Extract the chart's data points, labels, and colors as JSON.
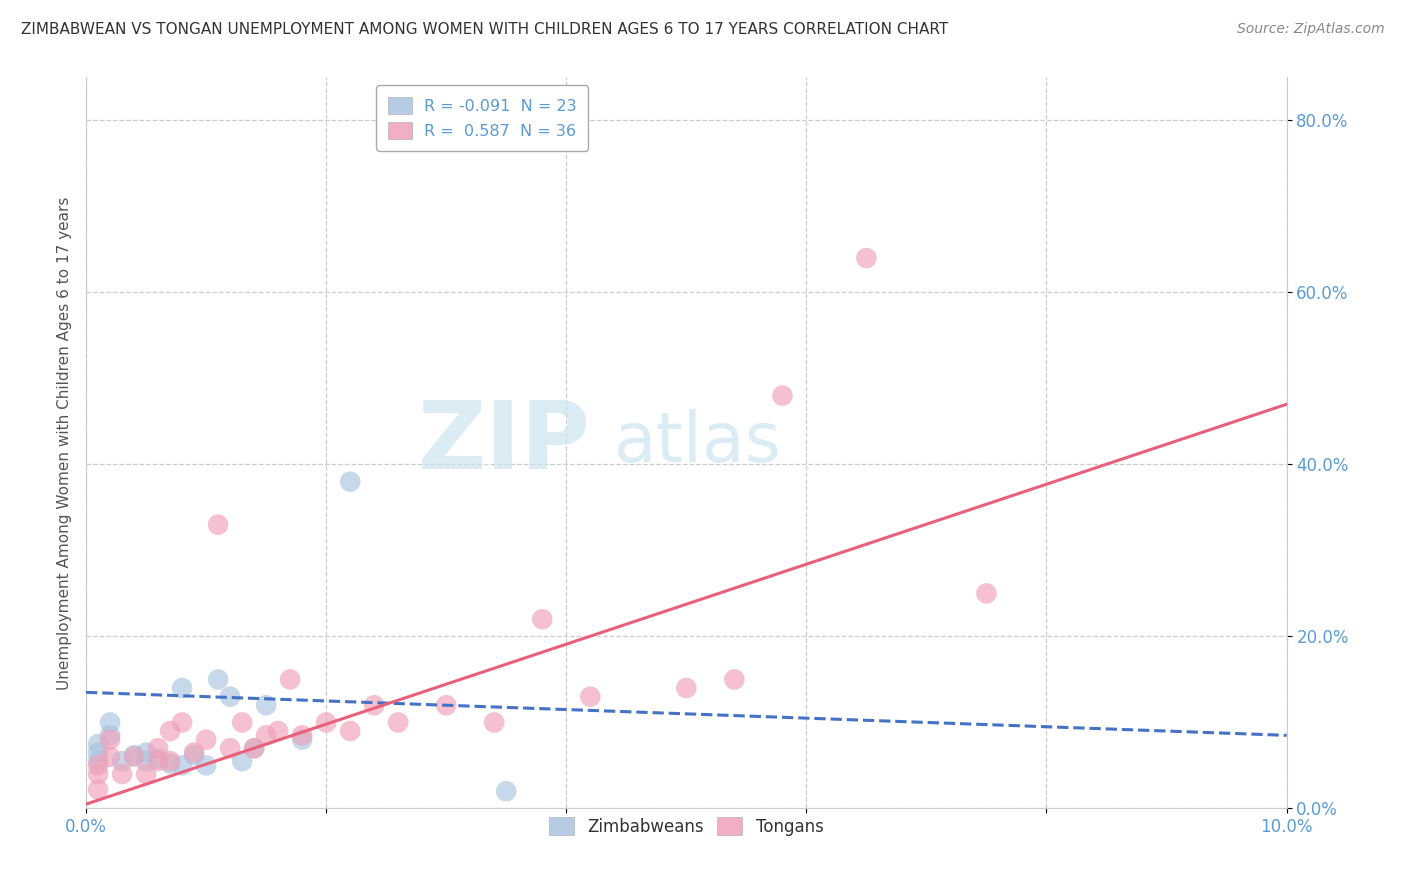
{
  "title": "ZIMBABWEAN VS TONGAN UNEMPLOYMENT AMONG WOMEN WITH CHILDREN AGES 6 TO 17 YEARS CORRELATION CHART",
  "source": "Source: ZipAtlas.com",
  "ylabel": "Unemployment Among Women with Children Ages 6 to 17 years",
  "xlim": [
    0.0,
    0.1
  ],
  "ylim": [
    0.0,
    0.85
  ],
  "xticks": [
    0.0,
    0.1
  ],
  "xticklabels": [
    "0.0%",
    "10.0%"
  ],
  "yticks": [
    0.0,
    0.2,
    0.4,
    0.6,
    0.8
  ],
  "yticklabels": [
    "0.0%",
    "20.0%",
    "40.0%",
    "60.0%",
    "80.0%"
  ],
  "background_color": "#ffffff",
  "grid_color": "#c8c8c8",
  "zimlabel": "R = -0.091  N = 23",
  "tonglabel": "R =  0.587  N = 36",
  "zim_color": "#a8c4e0",
  "tong_color": "#f0a0b8",
  "zim_line_color": "#4472c4",
  "tong_line_color": "#e8607a",
  "watermark_zip": "ZIP",
  "watermark_atlas": "atlas",
  "zimbabweans_x": [
    0.001,
    0.001,
    0.001,
    0.002,
    0.002,
    0.003,
    0.004,
    0.005,
    0.005,
    0.006,
    0.007,
    0.008,
    0.008,
    0.009,
    0.01,
    0.011,
    0.012,
    0.013,
    0.014,
    0.015,
    0.018,
    0.022,
    0.035
  ],
  "zimbabweans_y": [
    0.055,
    0.065,
    0.075,
    0.085,
    0.1,
    0.055,
    0.062,
    0.055,
    0.065,
    0.058,
    0.052,
    0.05,
    0.14,
    0.062,
    0.05,
    0.15,
    0.13,
    0.055,
    0.07,
    0.12,
    0.08,
    0.38,
    0.02
  ],
  "tongans_x": [
    0.001,
    0.001,
    0.001,
    0.002,
    0.002,
    0.003,
    0.004,
    0.005,
    0.006,
    0.006,
    0.007,
    0.007,
    0.008,
    0.009,
    0.01,
    0.011,
    0.012,
    0.013,
    0.014,
    0.015,
    0.016,
    0.017,
    0.018,
    0.02,
    0.022,
    0.024,
    0.026,
    0.03,
    0.034,
    0.038,
    0.042,
    0.05,
    0.054,
    0.058,
    0.065,
    0.075
  ],
  "tongans_y": [
    0.022,
    0.04,
    0.05,
    0.06,
    0.08,
    0.04,
    0.06,
    0.04,
    0.055,
    0.07,
    0.055,
    0.09,
    0.1,
    0.065,
    0.08,
    0.33,
    0.07,
    0.1,
    0.07,
    0.085,
    0.09,
    0.15,
    0.085,
    0.1,
    0.09,
    0.12,
    0.1,
    0.12,
    0.1,
    0.22,
    0.13,
    0.14,
    0.15,
    0.48,
    0.64,
    0.25
  ],
  "zim_trend_x": [
    0.0,
    0.1
  ],
  "zim_trend_y": [
    0.135,
    0.085
  ],
  "tong_trend_x": [
    0.0,
    0.1
  ],
  "tong_trend_y": [
    0.005,
    0.47
  ]
}
